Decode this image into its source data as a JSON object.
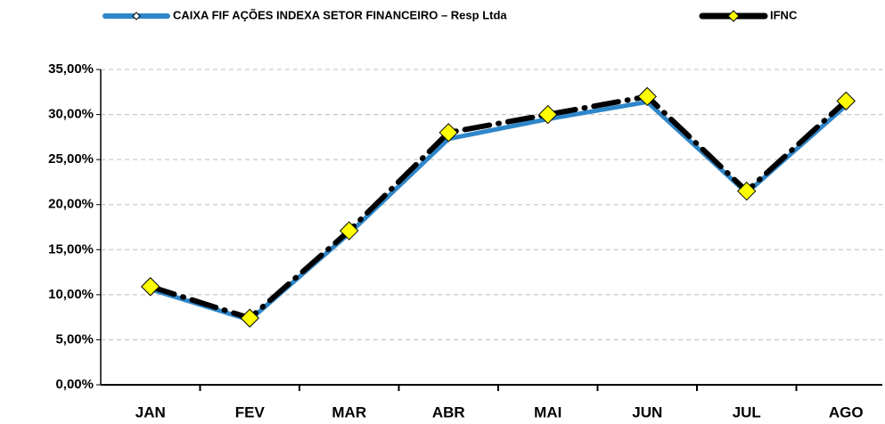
{
  "chart_data": {
    "type": "line",
    "categories": [
      "JAN",
      "FEV",
      "MAR",
      "ABR",
      "MAI",
      "JUN",
      "JUL",
      "AGO"
    ],
    "series": [
      {
        "name": "CAIXA FIF AÇÕES INDEXA SETOR FINANCEIRO – Resp Ltda",
        "color": "#2e86c9",
        "values": [
          10.6,
          7.2,
          16.8,
          27.3,
          29.5,
          31.4,
          21.3,
          31.0
        ]
      },
      {
        "name": "IFNC",
        "color": "#000000",
        "marker_color": "#ffff00",
        "values": [
          10.9,
          7.4,
          17.1,
          28.0,
          30.0,
          32.0,
          21.5,
          31.5
        ]
      }
    ],
    "ylim": [
      0,
      35
    ],
    "yticks": [
      {
        "value": 0,
        "label": "0,00%"
      },
      {
        "value": 5,
        "label": "5,00%"
      },
      {
        "value": 10,
        "label": "10,00%"
      },
      {
        "value": 15,
        "label": "15,00%"
      },
      {
        "value": 20,
        "label": "20,00%"
      },
      {
        "value": 25,
        "label": "25,00%"
      },
      {
        "value": 30,
        "label": "30,00%"
      },
      {
        "value": 35,
        "label": "35,00%"
      }
    ],
    "grid": true,
    "legend": "top"
  }
}
